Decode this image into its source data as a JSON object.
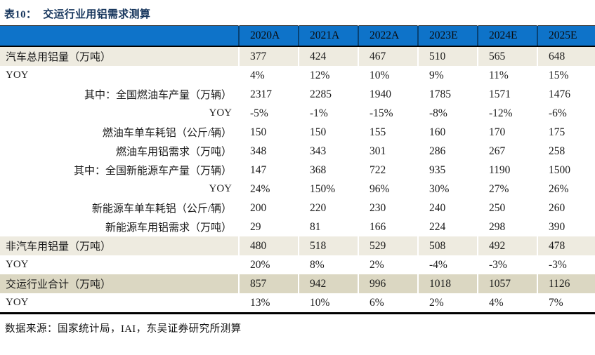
{
  "title": {
    "prefix": "表10：",
    "text": "交运行业用铝需求测算"
  },
  "footer": {
    "source": "数据来源：国家统计局，IAI，东吴证券研究所测算"
  },
  "colors": {
    "header_bg": "#0e73c9",
    "band_beige": "#eeebe0",
    "band_tan": "#dbd7c2",
    "title_navy": "#17365d",
    "rule_black": "#000000"
  },
  "chart_data": {
    "type": "table",
    "title": "交运行业用铝需求测算",
    "title_prefix": "表10：",
    "categories": [
      "2020A",
      "2021A",
      "2022A",
      "2023E",
      "2024E",
      "2025E"
    ],
    "rows": [
      {
        "label": "汽车总用铝量（万吨）",
        "values": [
          "377",
          "424",
          "467",
          "510",
          "565",
          "648"
        ],
        "style": "beige",
        "align": "left"
      },
      {
        "label": "YOY",
        "values": [
          "4%",
          "12%",
          "10%",
          "9%",
          "11%",
          "15%"
        ],
        "style": "white",
        "align": "left"
      },
      {
        "label": "其中：全国燃油车产量（万辆）",
        "values": [
          "2317",
          "2285",
          "1940",
          "1785",
          "1571",
          "1476"
        ],
        "style": "white",
        "align": "right"
      },
      {
        "label": "YOY",
        "values": [
          "-5%",
          "-1%",
          "-15%",
          "-8%",
          "-12%",
          "-6%"
        ],
        "style": "white",
        "align": "right"
      },
      {
        "label": "燃油车单车耗铝（公斤/辆）",
        "values": [
          "150",
          "150",
          "155",
          "160",
          "170",
          "175"
        ],
        "style": "white",
        "align": "right"
      },
      {
        "label": "燃油车用铝需求（万吨）",
        "values": [
          "348",
          "343",
          "301",
          "286",
          "267",
          "258"
        ],
        "style": "white",
        "align": "right"
      },
      {
        "label": "其中：全国新能源车产量（万辆）",
        "values": [
          "147",
          "368",
          "722",
          "935",
          "1190",
          "1500"
        ],
        "style": "white",
        "align": "right"
      },
      {
        "label": "YOY",
        "values": [
          "24%",
          "150%",
          "96%",
          "30%",
          "27%",
          "26%"
        ],
        "style": "white",
        "align": "right"
      },
      {
        "label": "新能源车单车耗铝（公斤/辆）",
        "values": [
          "200",
          "220",
          "230",
          "240",
          "250",
          "260"
        ],
        "style": "white",
        "align": "right"
      },
      {
        "label": "新能源车用铝需求（万吨）",
        "values": [
          "29",
          "81",
          "166",
          "224",
          "298",
          "390"
        ],
        "style": "white",
        "align": "right"
      },
      {
        "label": "非汽车用铝量（万吨）",
        "values": [
          "480",
          "518",
          "529",
          "508",
          "492",
          "478"
        ],
        "style": "beige",
        "align": "left"
      },
      {
        "label": "YOY",
        "values": [
          "20%",
          "8%",
          "2%",
          "-4%",
          "-3%",
          "-3%"
        ],
        "style": "white",
        "align": "left"
      },
      {
        "label": "交运行业合计（万吨）",
        "values": [
          "857",
          "942",
          "996",
          "1018",
          "1057",
          "1126"
        ],
        "style": "tan",
        "align": "left"
      },
      {
        "label": "YOY",
        "values": [
          "13%",
          "10%",
          "6%",
          "2%",
          "4%",
          "7%"
        ],
        "style": "white",
        "align": "left"
      }
    ]
  }
}
